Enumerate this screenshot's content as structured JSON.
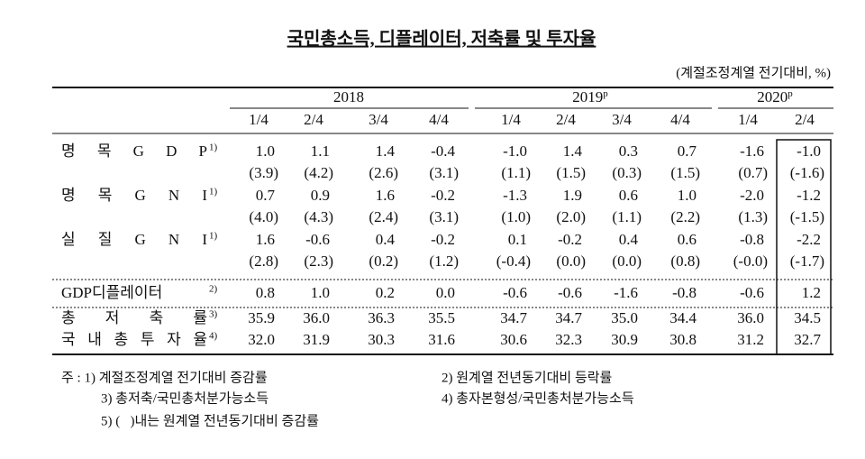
{
  "title": "국민총소득, 디플레이터, 저축률 및 투자율",
  "unit": "(계절조정계열 전기대비, %)",
  "years": [
    {
      "label": "2018",
      "sup": null
    },
    {
      "label": "2019",
      "sup": "p"
    },
    {
      "label": "2020",
      "sup": "p"
    }
  ],
  "quarters": [
    "1/4",
    "2/4",
    "3/4",
    "4/4",
    "1/4",
    "2/4",
    "3/4",
    "4/4",
    "1/4",
    "2/4"
  ],
  "rows": [
    {
      "label": "명 목 G D P",
      "sup": "1)",
      "values": [
        "1.0",
        "1.1",
        "1.4",
        "-0.4",
        "-1.0",
        "1.4",
        "0.3",
        "0.7",
        "-1.6",
        "-1.0"
      ],
      "paren": [
        "(3.9)",
        "(4.2)",
        "(2.6)",
        "(3.1)",
        "(1.1)",
        "(1.5)",
        "(0.3)",
        "(1.5)",
        "(0.7)",
        "(-1.6)"
      ]
    },
    {
      "label": "명 목 G N I",
      "sup": "1)",
      "values": [
        "0.7",
        "0.9",
        "1.6",
        "-0.2",
        "-1.3",
        "1.9",
        "0.6",
        "1.0",
        "-2.0",
        "-1.2"
      ],
      "paren": [
        "(4.0)",
        "(4.3)",
        "(2.4)",
        "(3.1)",
        "(1.0)",
        "(2.0)",
        "(1.1)",
        "(2.2)",
        "(1.3)",
        "(-1.5)"
      ]
    },
    {
      "label": "실 질 G N I",
      "sup": "1)",
      "values": [
        "1.6",
        "-0.6",
        "0.4",
        "-0.2",
        "0.1",
        "-0.2",
        "0.4",
        "0.6",
        "-0.8",
        "-2.2"
      ],
      "paren": [
        "(2.8)",
        "(2.3)",
        "(0.2)",
        "(1.2)",
        "(-0.4)",
        "(0.0)",
        "(0.0)",
        "(0.8)",
        "(-0.0)",
        "(-1.7)"
      ]
    },
    {
      "label": "GDP디플레이터",
      "sup": "2)",
      "values": [
        "0.8",
        "1.0",
        "0.2",
        "0.0",
        "-0.6",
        "-0.6",
        "-1.6",
        "-0.8",
        "-0.6",
        "1.2"
      ]
    },
    {
      "label": "총 저 축 률",
      "sup": "3)",
      "values": [
        "35.9",
        "36.0",
        "36.3",
        "35.5",
        "34.7",
        "34.7",
        "35.0",
        "34.4",
        "36.0",
        "34.5"
      ]
    },
    {
      "label": "국 내 총 투 자 율",
      "sup": "4)",
      "values": [
        "32.0",
        "31.9",
        "30.3",
        "31.6",
        "30.6",
        "32.3",
        "30.9",
        "30.8",
        "31.2",
        "32.7"
      ]
    }
  ],
  "notes": [
    "주 : 1) 계절조정계열 전기대비 증감률",
    "2) 원계열 전년동기대비 등락률",
    "3) 총저축/국민총처분가능소득",
    "4) 총자본형성/국민총처분가능소득",
    "5) (   )내는 원계열 전년동기대비 증감률"
  ]
}
